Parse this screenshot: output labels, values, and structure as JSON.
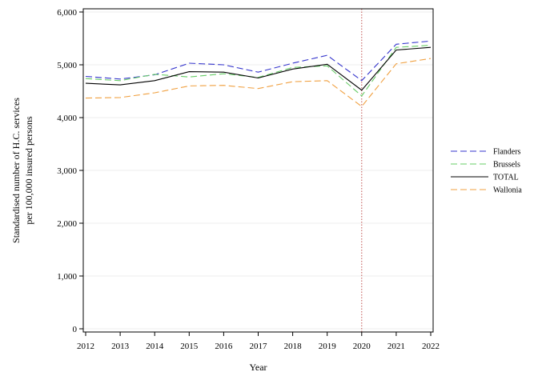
{
  "chart_data": {
    "type": "line",
    "title": "",
    "xlabel": "Year",
    "ylabel_lines": [
      "Standardised number of H.C. services",
      "per 100,000 insured persons"
    ],
    "x": [
      2012,
      2013,
      2014,
      2015,
      2016,
      2017,
      2018,
      2019,
      2020,
      2021,
      2022
    ],
    "xticks": [
      "2012",
      "2013",
      "2014",
      "2015",
      "2016",
      "2017",
      "2018",
      "2019",
      "2020",
      "2021",
      "2022"
    ],
    "ylim": [
      0,
      6000
    ],
    "yticks": [
      0,
      1000,
      2000,
      3000,
      4000,
      5000,
      6000
    ],
    "ytick_labels": [
      "0",
      "1,000",
      "2,000",
      "3,000",
      "4,000",
      "5,000",
      "6,000"
    ],
    "grid": "horizontal",
    "reference_line": {
      "x": 2020,
      "color": "#c0504d",
      "style": "dotted"
    },
    "legend_position": "right",
    "series": [
      {
        "name": "Flanders",
        "color": "#3333cc",
        "style": "dashed",
        "values": [
          4780,
          4730,
          4810,
          5030,
          5000,
          4860,
          5030,
          5180,
          4700,
          5390,
          5450
        ]
      },
      {
        "name": "Brussels",
        "color": "#66cc66",
        "style": "dashed",
        "values": [
          4740,
          4700,
          4820,
          4770,
          4830,
          4760,
          4950,
          4980,
          4410,
          5330,
          5370
        ]
      },
      {
        "name": "TOTAL",
        "color": "#000000",
        "style": "solid",
        "values": [
          4650,
          4620,
          4700,
          4870,
          4860,
          4750,
          4920,
          5010,
          4520,
          5280,
          5330
        ]
      },
      {
        "name": "Wallonia",
        "color": "#f0a040",
        "style": "dashed",
        "values": [
          4370,
          4380,
          4470,
          4600,
          4610,
          4550,
          4680,
          4700,
          4210,
          5020,
          5120
        ]
      }
    ]
  }
}
